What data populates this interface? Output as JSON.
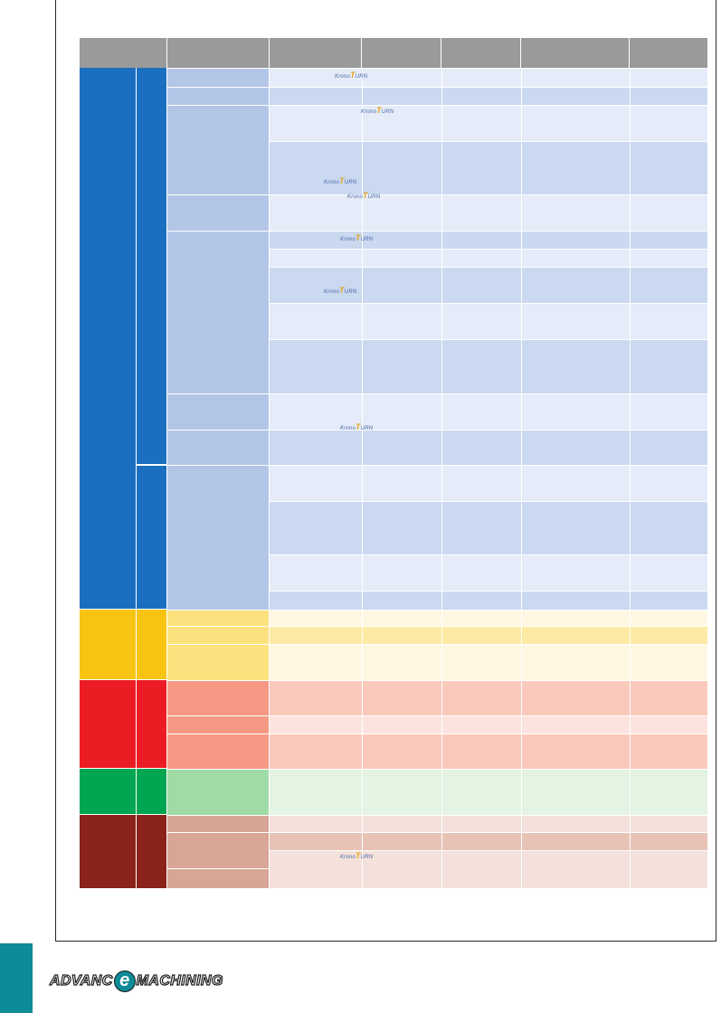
{
  "colors": {
    "header": "#9a9a9a",
    "blue_group": "#1b6fc0",
    "blue_sub": "#b3c6e7",
    "blue_row_light": "#e5ebf8",
    "blue_row_mid": "#cad8f0",
    "yellow_group": "#f8c414",
    "yellow_sub": "#fce27e",
    "yellow_row_light": "#fff7e2",
    "yellow_row_mid": "#fdeaa4",
    "red_group": "#ec1c24",
    "red_sub": "#f69984",
    "red_row_light": "#fde3dd",
    "red_row_mid": "#fac9bb",
    "green_group": "#00a651",
    "green_sub": "#9fdba5",
    "green_row": "#e3f4e2",
    "brown_group": "#89231b",
    "brown_sub": "#d8a696",
    "brown_row_light": "#f4e1db",
    "brown_row_mid": "#e7c2b5",
    "accent_bar": "#0e8b97"
  },
  "logo": {
    "prefix": "Krono",
    "t": "T",
    "suffix": "URN"
  },
  "brand": {
    "left": "ADVANC",
    "e": "e",
    "right": "MACHINING"
  }
}
